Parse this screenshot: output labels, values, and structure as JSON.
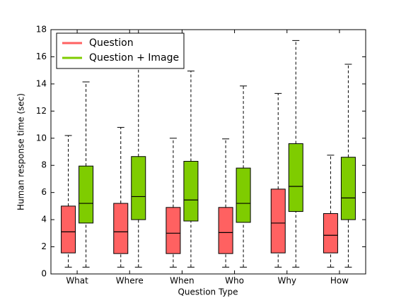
{
  "chart_data": {
    "type": "box",
    "xlabel": "Question Type",
    "ylabel": "Human response time (sec)",
    "categories": [
      "What",
      "Where",
      "When",
      "Who",
      "Why",
      "How"
    ],
    "series": [
      {
        "name": "Question",
        "color": "#ff6161",
        "values": [
          [
            0.5,
            1.55,
            3.1,
            5.0,
            10.2
          ],
          [
            0.5,
            1.5,
            3.1,
            5.2,
            10.8
          ],
          [
            0.5,
            1.5,
            3.0,
            4.9,
            10.0
          ],
          [
            0.5,
            1.5,
            3.05,
            4.9,
            9.95
          ],
          [
            0.5,
            1.55,
            3.75,
            6.25,
            13.3
          ],
          [
            0.5,
            1.55,
            2.85,
            4.45,
            8.75
          ]
        ]
      },
      {
        "name": "Question + Image",
        "color": "#7fcc00",
        "values": [
          [
            0.5,
            3.75,
            5.2,
            7.95,
            14.15
          ],
          [
            0.5,
            4.0,
            5.7,
            8.65,
            18
          ],
          [
            0.5,
            3.9,
            5.45,
            8.3,
            14.95
          ],
          [
            0.5,
            3.8,
            5.2,
            7.8,
            13.85
          ],
          [
            0.5,
            4.6,
            6.45,
            9.6,
            17.2
          ],
          [
            0.5,
            4.0,
            5.6,
            8.6,
            15.45
          ]
        ]
      }
    ],
    "ylim": [
      0,
      18
    ],
    "yticks": [
      0,
      2,
      4,
      6,
      8,
      10,
      12,
      14,
      16,
      18
    ],
    "legend": "upper left"
  }
}
